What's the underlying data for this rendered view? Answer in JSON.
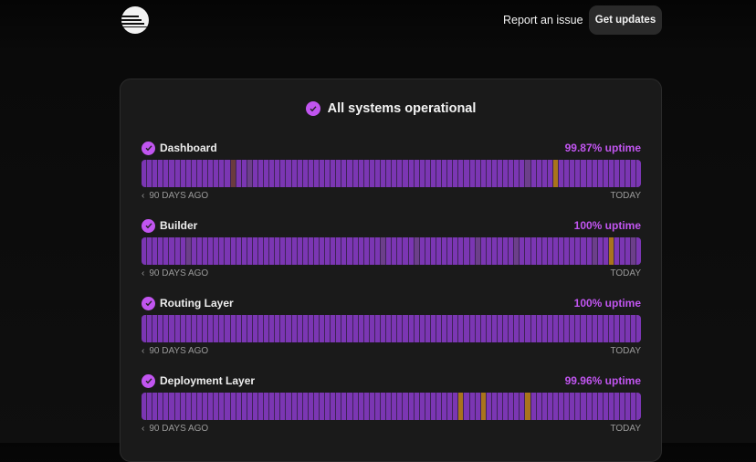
{
  "header": {
    "report_label": "Report an issue",
    "updates_label": "Get updates"
  },
  "status": {
    "title": "All systems operational"
  },
  "colors": {
    "accent": "#c155f0",
    "bar_ok": "#7b36b3",
    "bar_partial": "#6c3f8a",
    "bar_incident": "#a9741c",
    "bar_outage": "#6a3b3f"
  },
  "range": {
    "start_label": "90 DAYS AGO",
    "end_label": "TODAY",
    "days": 90
  },
  "services": [
    {
      "name": "Dashboard",
      "uptime": "99.87% uptime",
      "partial_days": [
        19,
        69
      ],
      "incident_days": [
        74
      ],
      "outage_days": [
        16
      ]
    },
    {
      "name": "Builder",
      "uptime": "100% uptime",
      "partial_days": [
        8,
        43,
        49,
        60,
        67,
        81,
        88
      ],
      "incident_days": [
        84
      ],
      "outage_days": []
    },
    {
      "name": "Routing Layer",
      "uptime": "100% uptime",
      "partial_days": [],
      "incident_days": [],
      "outage_days": []
    },
    {
      "name": "Deployment Layer",
      "uptime": "99.96% uptime",
      "partial_days": [],
      "incident_days": [
        57,
        61,
        69
      ],
      "outage_days": []
    }
  ]
}
